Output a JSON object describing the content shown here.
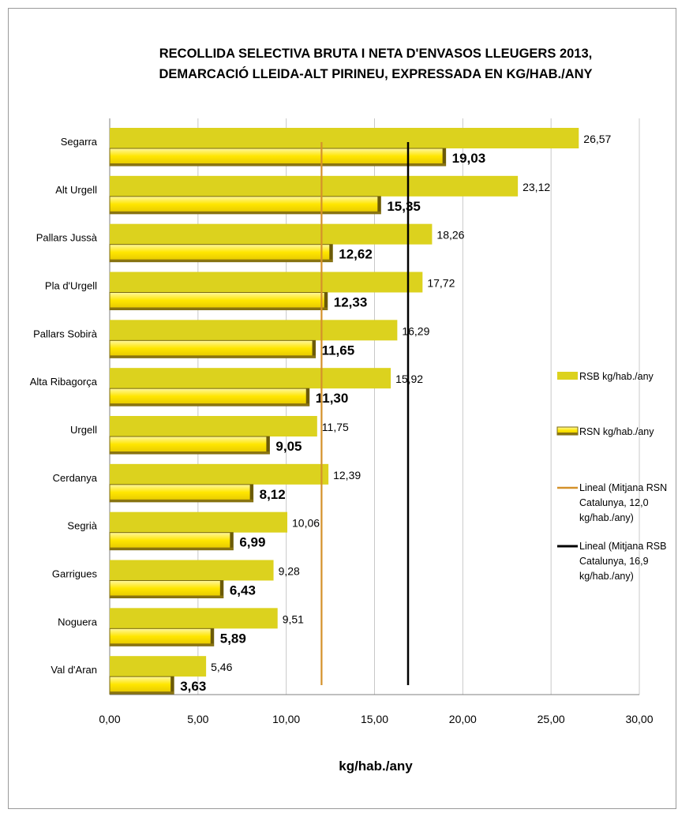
{
  "chart_data": {
    "type": "bar",
    "orientation": "horizontal",
    "title_lines": [
      "RECOLLIDA SELECTIVA BRUTA I NETA D'ENVASOS LLEUGERS 2013,",
      "DEMARCACIÓ LLEIDA-ALT PIRINEU, EXPRESSADA EN KG/HAB./ANY"
    ],
    "xlabel": "kg/hab./any",
    "xlim": [
      0,
      30
    ],
    "x_ticks": [
      "0,00",
      "5,00",
      "10,00",
      "15,00",
      "20,00",
      "25,00",
      "30,00"
    ],
    "categories": [
      "Segarra",
      "Alt Urgell",
      "Pallars Jussà",
      "Pla d'Urgell",
      "Pallars Sobirà",
      "Alta Ribagorça",
      "Urgell",
      "Cerdanya",
      "Segrià",
      "Garrigues",
      "Noguera",
      "Val d'Aran"
    ],
    "series": [
      {
        "name": "RSB kg/hab./any",
        "color": "#dcd21e",
        "values": [
          26.57,
          23.12,
          18.26,
          17.72,
          16.29,
          15.92,
          11.75,
          12.39,
          10.06,
          9.28,
          9.51,
          5.46
        ],
        "labels": [
          "26,57",
          "23,12",
          "18,26",
          "17,72",
          "16,29",
          "15,92",
          "11,75",
          "12,39",
          "10,06",
          "9,28",
          "9,51",
          "5,46"
        ]
      },
      {
        "name": "RSN kg/hab./any",
        "color": "#ffe600",
        "values": [
          19.03,
          15.35,
          12.62,
          12.33,
          11.65,
          11.3,
          9.05,
          8.12,
          6.99,
          6.43,
          5.89,
          3.63
        ],
        "labels": [
          "19,03",
          "15,35",
          "12,62",
          "12,33",
          "11,65",
          "11,30",
          "9,05",
          "8,12",
          "6,99",
          "6,43",
          "5,89",
          "3,63"
        ]
      }
    ],
    "reference_lines": [
      {
        "name_lines": [
          "Lineal (Mitjana RSN",
          "Catalunya, 12,0",
          "kg/hab./any)"
        ],
        "value": 12.0,
        "color": "#d4912a"
      },
      {
        "name_lines": [
          "Lineal (Mitjana RSB",
          "Catalunya, 16,9",
          "kg/hab./any)"
        ],
        "value": 16.9,
        "color": "#000000"
      }
    ],
    "grid": "vertical",
    "legend_position": "right"
  }
}
